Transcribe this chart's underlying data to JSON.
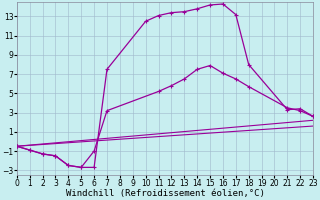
{
  "xlabel": "Windchill (Refroidissement éolien,°C)",
  "background_color": "#c8eef0",
  "grid_color": "#a0b8cc",
  "line_color": "#990099",
  "xlim": [
    0,
    23
  ],
  "ylim": [
    -3.5,
    14.5
  ],
  "xticks": [
    0,
    1,
    2,
    3,
    4,
    5,
    6,
    7,
    8,
    9,
    10,
    11,
    12,
    13,
    14,
    15,
    16,
    17,
    18,
    19,
    20,
    21,
    22,
    23
  ],
  "yticks": [
    -3,
    -1,
    1,
    3,
    5,
    7,
    9,
    11,
    13
  ],
  "curve1_x": [
    0,
    1,
    2,
    3,
    4,
    5,
    6,
    7,
    10,
    11,
    12,
    13,
    14,
    15,
    16,
    17,
    18,
    21,
    22,
    23
  ],
  "curve1_y": [
    -0.5,
    -0.9,
    -1.3,
    -1.5,
    -2.5,
    -2.7,
    -2.7,
    7.5,
    12.5,
    13.1,
    13.4,
    13.5,
    13.8,
    14.2,
    14.3,
    13.2,
    8.0,
    3.3,
    3.4,
    2.6
  ],
  "curve2_x": [
    0,
    1,
    2,
    3,
    4,
    5,
    6,
    7,
    11,
    12,
    13,
    14,
    15,
    16,
    17,
    18,
    21,
    22,
    23
  ],
  "curve2_y": [
    -0.5,
    -0.9,
    -1.3,
    -1.5,
    -2.5,
    -2.7,
    -1.0,
    3.2,
    5.2,
    5.8,
    6.5,
    7.5,
    7.9,
    7.1,
    6.5,
    5.7,
    3.5,
    3.2,
    2.6
  ],
  "curve3_x": [
    0,
    23
  ],
  "curve3_y": [
    -0.5,
    2.2
  ],
  "curve4_x": [
    0,
    23
  ],
  "curve4_y": [
    -0.5,
    1.6
  ],
  "tick_fontsize": 5.5,
  "xlabel_fontsize": 6.5,
  "lw_main": 0.9,
  "lw_secondary": 0.8,
  "marker_size": 3.5,
  "marker_lw": 0.8
}
